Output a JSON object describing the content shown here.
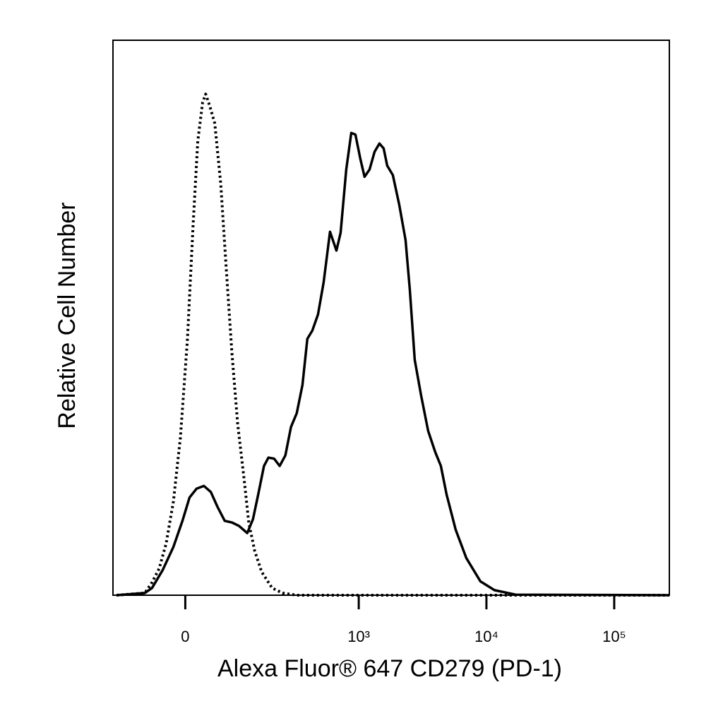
{
  "chart_data": {
    "type": "line",
    "x_label": "Alexa Fluor® 647 CD279 (PD-1)",
    "y_label": "Relative Cell Number",
    "xscale": "asinh",
    "xlim": [
      -150,
      270000
    ],
    "xticks": [
      0,
      {
        "value": 1000,
        "label": "10³"
      },
      {
        "value": 10000,
        "label": "10⁴"
      },
      {
        "value": 100000,
        "label": "10⁵"
      }
    ],
    "ylim": [
      0,
      100
    ],
    "series": [
      {
        "color": "#000000",
        "line_style": "solid",
        "x": [
          -139,
          -70,
          -56,
          -37,
          -19,
          -4.5,
          6.7,
          18,
          30,
          42,
          54,
          68,
          83,
          99,
          120,
          136,
          152,
          171,
          187,
          209,
          233,
          260,
          289,
          322,
          358,
          392,
          430,
          477,
          529,
          594,
          667,
          720,
          797,
          873,
          942,
          1030,
          1111,
          1216,
          1330,
          1454,
          1569,
          1671,
          1851,
          2075,
          2328,
          2512,
          2747,
          3082,
          3500,
          3975,
          4401,
          4872,
          5748,
          6957,
          8972,
          11572,
          16949,
          270000
        ],
        "values": [
          0,
          0.4,
          1.3,
          4.5,
          8.7,
          13.4,
          17.6,
          19.2,
          19.7,
          18.6,
          15.9,
          13.4,
          13.1,
          12.5,
          11.2,
          13.7,
          18.2,
          23.3,
          24.8,
          24.6,
          23.3,
          25.2,
          30.3,
          32.8,
          37.9,
          46.2,
          47.7,
          50.6,
          56.4,
          65.5,
          62.1,
          65.3,
          76.7,
          83.3,
          83.0,
          78.6,
          75.4,
          76.7,
          79.9,
          81.4,
          80.5,
          77.4,
          75.7,
          70.4,
          64.0,
          55.1,
          42.4,
          36.0,
          29.6,
          25.8,
          23.3,
          18.2,
          11.8,
          6.7,
          2.5,
          0.9,
          0.1,
          0
        ]
      },
      {
        "color": "#000000",
        "line_style": "dotted",
        "x": [
          -139,
          -70,
          -56,
          -43,
          -31,
          -19,
          -7.8,
          3.4,
          12.3,
          20,
          28,
          33,
          40,
          49,
          60,
          71,
          83,
          96,
          112,
          124,
          141,
          163,
          201,
          246,
          322,
          270000
        ],
        "values": [
          0,
          0.4,
          2.3,
          4.8,
          9.3,
          16.9,
          28.4,
          46.2,
          66.5,
          81.8,
          88.8,
          90.3,
          88.2,
          85.0,
          74.2,
          58.9,
          43.6,
          30.9,
          20.7,
          13.1,
          8.0,
          4.2,
          1.3,
          0.4,
          0,
          0
        ]
      }
    ]
  }
}
